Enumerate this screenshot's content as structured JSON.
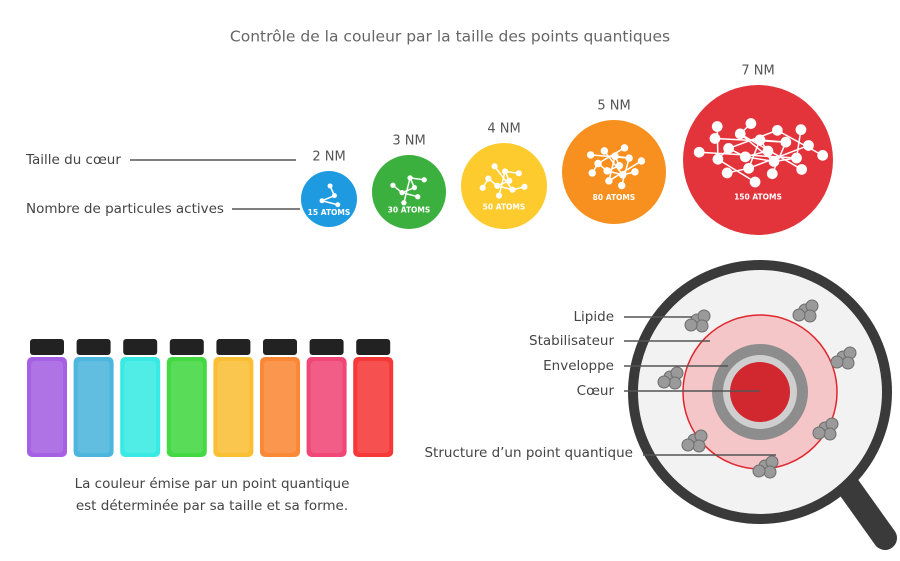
{
  "title": "Contrôle de la couleur par la taille des points quantiques",
  "legend": {
    "core_size": "Taille du cœur",
    "active_particles": "Nombre de particules actives"
  },
  "dots": [
    {
      "size": "2 NM",
      "atoms": "15 ATOMS",
      "color": "#1e9be0"
    },
    {
      "size": "3 NM",
      "atoms": "30 ATOMS",
      "color": "#3bb03f"
    },
    {
      "size": "4 NM",
      "atoms": "50 ATOMS",
      "color": "#fdcb2e"
    },
    {
      "size": "5 NM",
      "atoms": "80 ATOMS",
      "color": "#f7901e"
    },
    {
      "size": "7 NM",
      "atoms": "150 ATOMS",
      "color": "#e3343c"
    }
  ],
  "bottles": {
    "colors": [
      "#9b4fe0",
      "#3aaed8",
      "#22e8e0",
      "#2dd52d",
      "#fbb81f",
      "#fb7b21",
      "#ee3367",
      "#f52224"
    ],
    "caption": [
      "La couleur émise par un point quantique",
      "est déterminée par sa taille et sa forme."
    ]
  },
  "structure": {
    "lipid": "Lipide",
    "stabilizer": "Stabilisateur",
    "shell": "Enveloppe",
    "core": "Cœur",
    "title": "Structure d’un point quantique"
  }
}
